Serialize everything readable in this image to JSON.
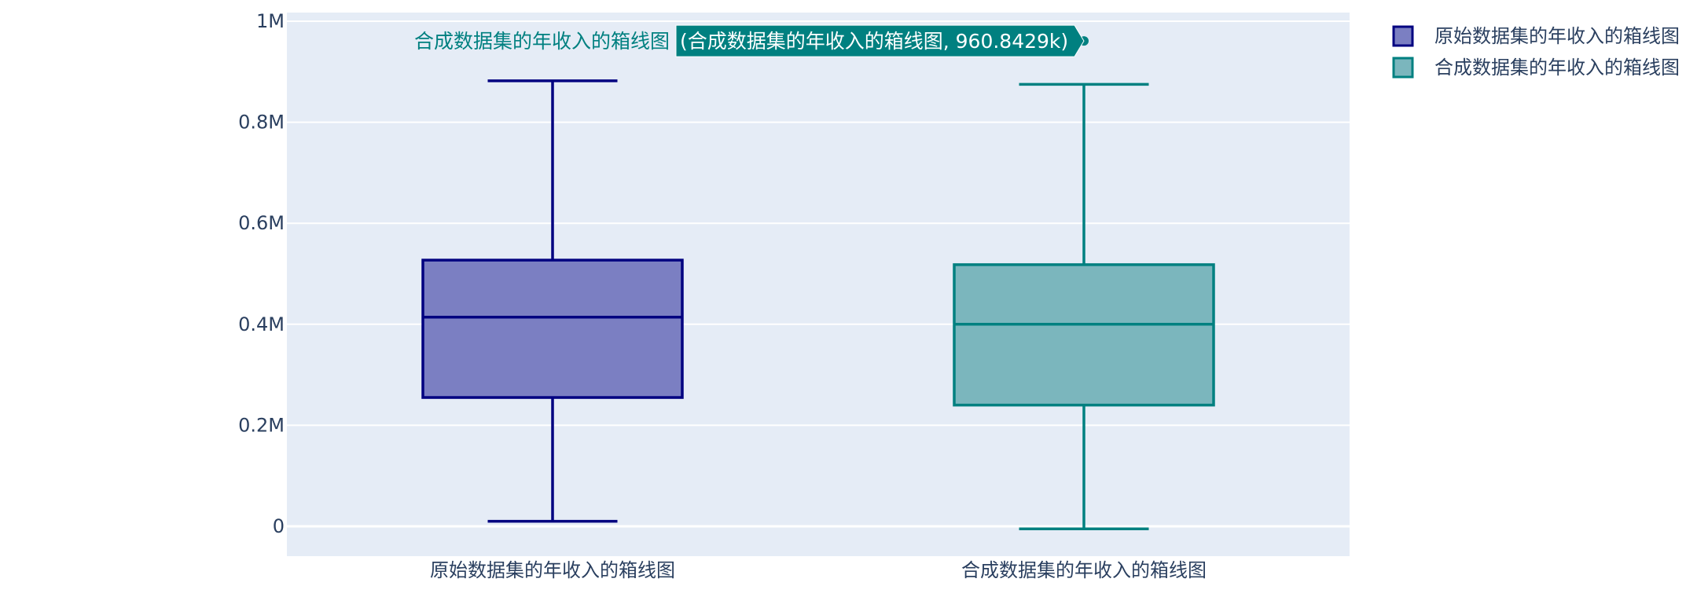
{
  "chart_data": {
    "type": "box",
    "title": "",
    "xlabel": "",
    "ylabel": "",
    "ylim": [
      -60000,
      1010000
    ],
    "y_ticks": [
      {
        "value": 0,
        "label": "0"
      },
      {
        "value": 200000,
        "label": "0.2M"
      },
      {
        "value": 400000,
        "label": "0.4M"
      },
      {
        "value": 600000,
        "label": "0.6M"
      },
      {
        "value": 800000,
        "label": "0.8M"
      },
      {
        "value": 1000000,
        "label": "1M"
      }
    ],
    "categories": [
      "原始数据集的年收入的箱线图",
      "合成数据集的年收入的箱线图"
    ],
    "series": [
      {
        "name": "原始数据集的年收入的箱线图",
        "category": "原始数据集的年收入的箱线图",
        "lower_whisker": 10000,
        "q1": 255000,
        "median": 414000,
        "q3": 527000,
        "upper_whisker": 882000,
        "line_color": "#000080",
        "fill_color": "#7b7fc2"
      },
      {
        "name": "合成数据集的年收入的箱线图",
        "category": "合成数据集的年收入的箱线图",
        "lower_whisker": -5000,
        "q1": 240000,
        "median": 400000,
        "q3": 518000,
        "upper_whisker": 875000,
        "line_color": "#008080",
        "fill_color": "#7bb6bd"
      }
    ],
    "legend": {
      "position": "top-right",
      "items": [
        "原始数据集的年收入的箱线图",
        "合成数据集的年收入的箱线图"
      ]
    },
    "hover": {
      "series_index": 1,
      "point_value": 960842.9,
      "name_label": "合成数据集的年收入的箱线图",
      "value_label": "(合成数据集的年收入的箱线图, 960.8429k)",
      "color": "#008080"
    },
    "colors": {
      "plot_bg": "#e5ecf6",
      "grid": "#ffffff",
      "text": "#2a3f5f"
    }
  }
}
